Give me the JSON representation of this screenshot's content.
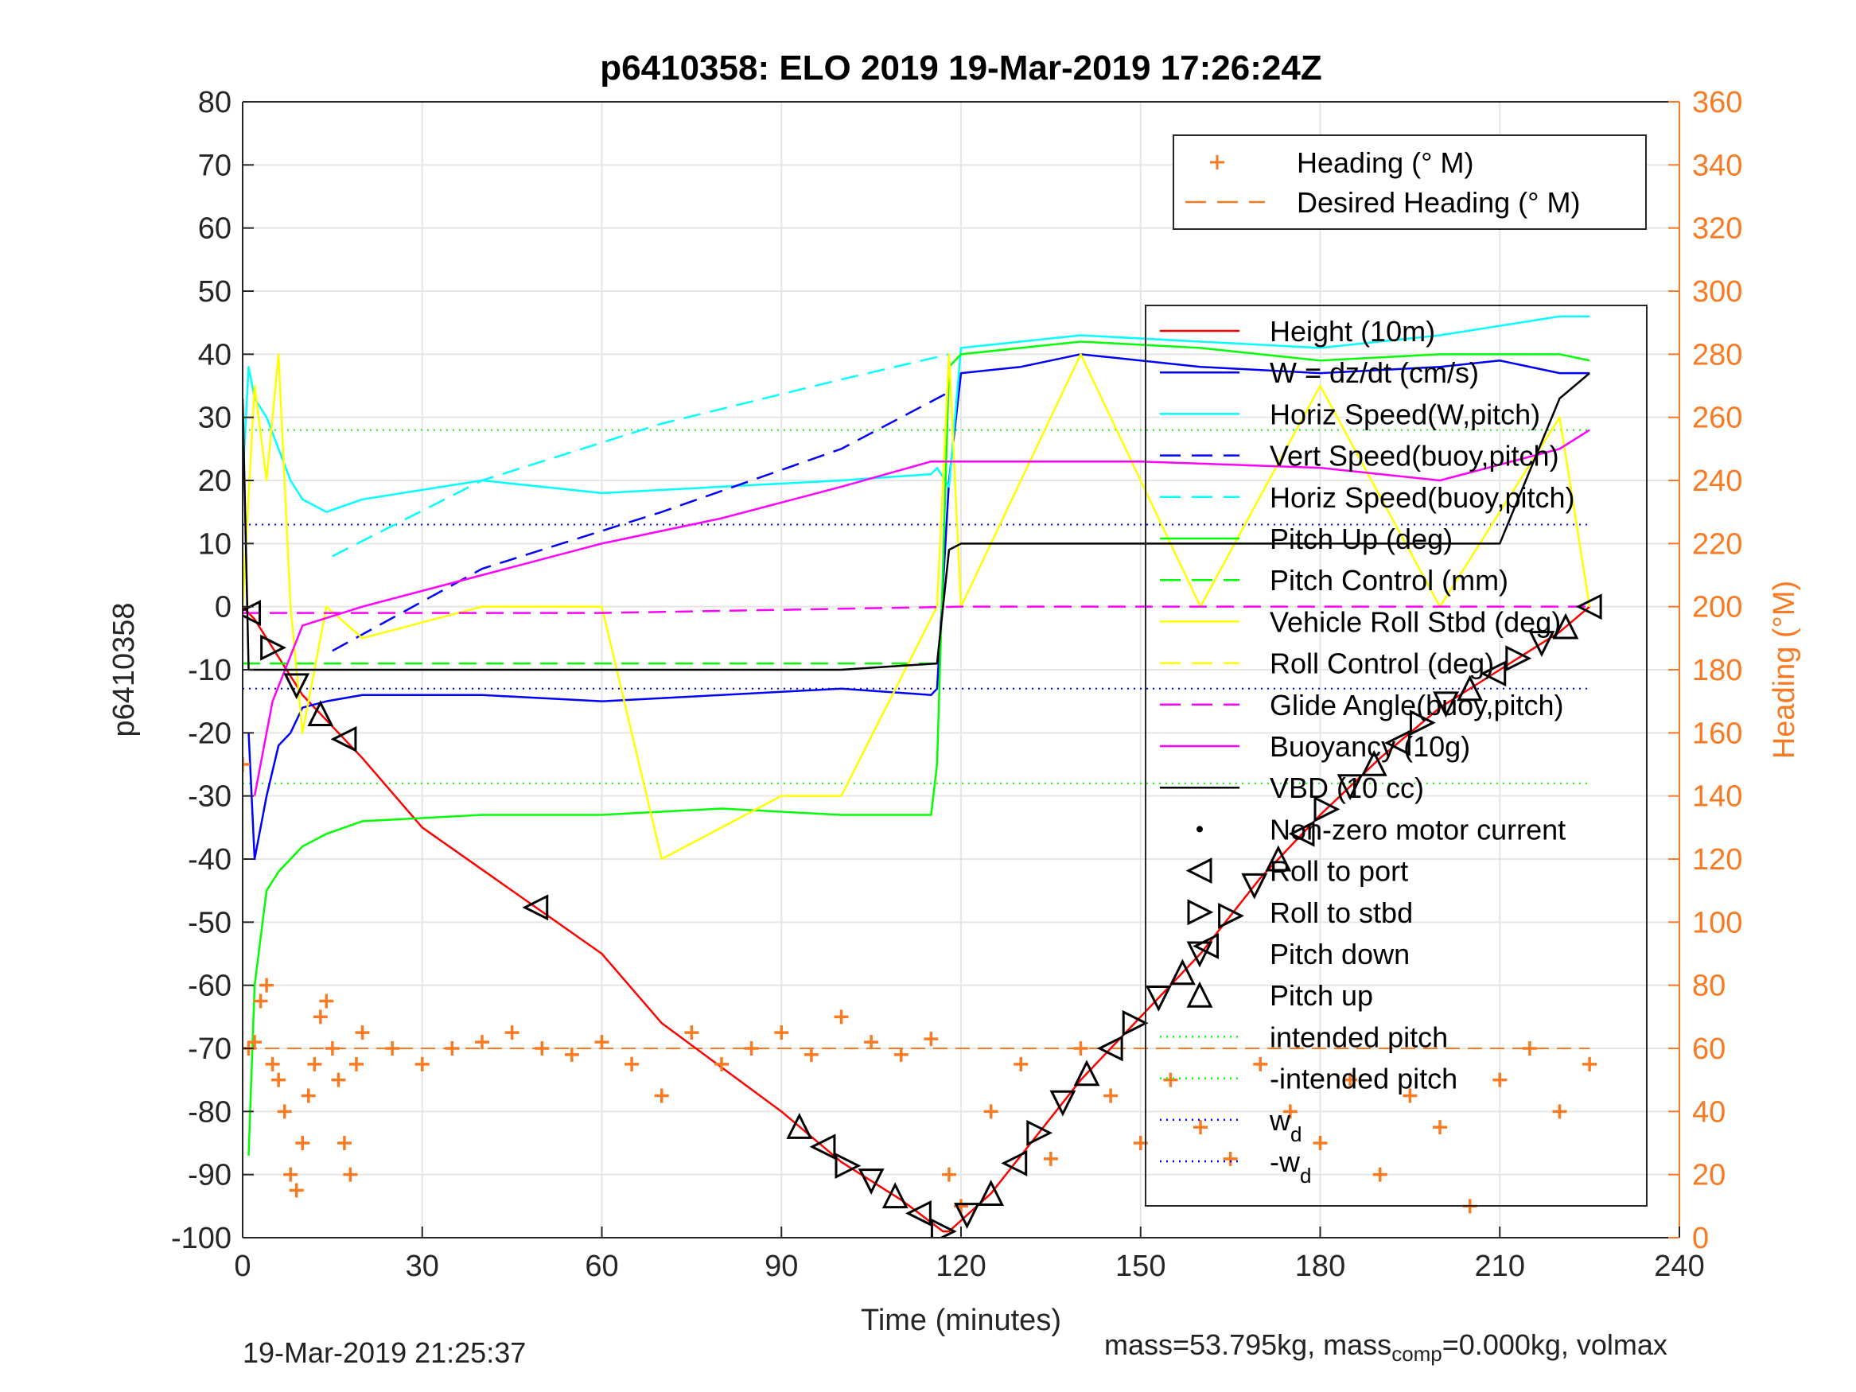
{
  "chart_data": {
    "type": "line",
    "title": "p6410358: ELO 2019 19-Mar-2019 17:26:24Z",
    "xlabel": "Time (minutes)",
    "ylabel": "p6410358",
    "ylabel_right": "Heading (°M)",
    "xlim": [
      0,
      240
    ],
    "ylim": [
      -100,
      80
    ],
    "ylim_right": [
      0,
      360
    ],
    "xticks": [
      0,
      30,
      60,
      90,
      120,
      150,
      180,
      210,
      240
    ],
    "yticks": [
      -100,
      -90,
      -80,
      -70,
      -60,
      -50,
      -40,
      -30,
      -20,
      -10,
      0,
      10,
      20,
      30,
      40,
      50,
      60,
      70,
      80
    ],
    "yticks_right": [
      0,
      20,
      40,
      60,
      80,
      100,
      120,
      140,
      160,
      180,
      200,
      220,
      240,
      260,
      280,
      300,
      320,
      340,
      360
    ],
    "grid": true,
    "colors": {
      "height": "#ff0000",
      "w": "#0000ff",
      "horiz_w": "#00ffff",
      "pitch": "#00ff00",
      "roll": "#ffff00",
      "glide": "#ff00ff",
      "buoyancy": "#ff00ff",
      "vbd": "#000000",
      "heading": "#f97a22",
      "axis": "#262626",
      "right_axis": "#f97a22"
    },
    "legend_right_top": [
      {
        "label": "Heading (° M)",
        "style": "plus",
        "color": "#f97a22"
      },
      {
        "label": "Desired Heading (° M)",
        "style": "dash",
        "color": "#f97a22"
      }
    ],
    "legend_main": [
      {
        "label": "Height (10m)",
        "style": "solid",
        "color": "#ff0000"
      },
      {
        "label": "W = dz/dt (cm/s)",
        "style": "solid",
        "color": "#0000ff"
      },
      {
        "label": "Horiz Speed(W,pitch)",
        "style": "solid",
        "color": "#00ffff"
      },
      {
        "label": "Vert Speed(buoy,pitch)",
        "style": "dash",
        "color": "#0000ff"
      },
      {
        "label": "Horiz Speed(buoy,pitch)",
        "style": "dash",
        "color": "#00ffff"
      },
      {
        "label": "Pitch Up (deg)",
        "style": "solid",
        "color": "#00ff00"
      },
      {
        "label": "Pitch Control (mm)",
        "style": "dash",
        "color": "#00ff00"
      },
      {
        "label": "Vehicle Roll Stbd (deg)",
        "style": "solid",
        "color": "#ffff00"
      },
      {
        "label": "Roll Control (deg)",
        "style": "dash",
        "color": "#ffff00"
      },
      {
        "label": "Glide Angle(buoy,pitch)",
        "style": "dash",
        "color": "#ff00ff"
      },
      {
        "label": "Buoyancy (10g)",
        "style": "solid",
        "color": "#ff00ff"
      },
      {
        "label": "VBD (10 cc)",
        "style": "solid",
        "color": "#000000"
      },
      {
        "label": "Non-zero motor current",
        "style": "dot",
        "color": "#000000"
      },
      {
        "label": "Roll to port",
        "style": "tri-left",
        "color": "#000000"
      },
      {
        "label": "Roll to stbd",
        "style": "tri-right",
        "color": "#000000"
      },
      {
        "label": "Pitch down",
        "style": "tri-down",
        "color": "#000000"
      },
      {
        "label": "Pitch up",
        "style": "tri-up",
        "color": "#000000"
      },
      {
        "label": "intended pitch",
        "style": "dotted",
        "color": "#00ff00"
      },
      {
        "label": "-intended pitch",
        "style": "dotted",
        "color": "#00ff00"
      },
      {
        "label": "w",
        "sub": "d",
        "style": "dotted",
        "color": "#0000ff"
      },
      {
        "label": "-w",
        "sub": "d",
        "style": "dotted",
        "color": "#0000ff"
      }
    ],
    "reference_lines": {
      "intended_pitch": 28,
      "neg_intended_pitch": -28,
      "wd": 13,
      "neg_wd": -13,
      "desired_heading": 60
    },
    "series": [
      {
        "name": "Height (10m)",
        "x": [
          0,
          2,
          10,
          20,
          30,
          48,
          60,
          70,
          90,
          100,
          110,
          117,
          118,
          125,
          140,
          150,
          160,
          170,
          180,
          190,
          200,
          210,
          220,
          225
        ],
        "y": [
          0,
          -2,
          -14,
          -24,
          -35,
          -47,
          -55,
          -66,
          -80,
          -88,
          -94,
          -99,
          -99,
          -93,
          -75,
          -65,
          -55,
          -43,
          -33,
          -24,
          -16,
          -10,
          -4,
          0
        ]
      },
      {
        "name": "W = dz/dt (cm/s)",
        "x": [
          1,
          2,
          4,
          6,
          8,
          10,
          14,
          20,
          40,
          60,
          80,
          100,
          115,
          116,
          118,
          120,
          130,
          140,
          160,
          180,
          200,
          210,
          220,
          225
        ],
        "y": [
          -20,
          -40,
          -30,
          -22,
          -20,
          -16,
          -15,
          -14,
          -14,
          -15,
          -14,
          -13,
          -14,
          -13,
          20,
          37,
          38,
          40,
          38,
          37,
          38,
          39,
          37,
          37
        ]
      },
      {
        "name": "Horiz Speed(W,pitch)",
        "x": [
          0,
          1,
          2,
          4,
          6,
          8,
          10,
          14,
          20,
          40,
          60,
          80,
          100,
          115,
          116,
          118,
          120,
          140,
          160,
          180,
          200,
          220,
          225
        ],
        "y": [
          20,
          38,
          33,
          30,
          25,
          20,
          17,
          15,
          17,
          20,
          18,
          19,
          20,
          21,
          22,
          19,
          41,
          43,
          42,
          41,
          43,
          46,
          46
        ]
      },
      {
        "name": "Vert Speed(buoy,pitch)",
        "x": [
          15,
          40,
          70,
          100,
          118
        ],
        "y": [
          -7,
          6,
          15,
          25,
          34
        ]
      },
      {
        "name": "Horiz Speed(buoy,pitch)",
        "x": [
          15,
          40,
          70,
          100,
          118
        ],
        "y": [
          8,
          20,
          29,
          36,
          40
        ]
      },
      {
        "name": "Pitch Up (deg)",
        "x": [
          1,
          2,
          4,
          6,
          8,
          10,
          14,
          20,
          40,
          60,
          80,
          100,
          115,
          116,
          118,
          120,
          140,
          160,
          180,
          200,
          220,
          225
        ],
        "y": [
          -87,
          -60,
          -45,
          -42,
          -40,
          -38,
          -36,
          -34,
          -33,
          -33,
          -32,
          -33,
          -33,
          -25,
          38,
          40,
          42,
          41,
          39,
          40,
          40,
          39
        ]
      },
      {
        "name": "Pitch Control (mm)",
        "x": [
          0,
          20,
          60,
          100,
          117
        ],
        "y": [
          -9,
          -9,
          -9,
          -9,
          -9
        ]
      },
      {
        "name": "Vehicle Roll Stbd (deg)",
        "x": [
          0,
          2,
          4,
          6,
          8,
          10,
          14,
          20,
          40,
          60,
          70,
          90,
          100,
          116,
          118,
          120,
          140,
          160,
          180,
          200,
          220,
          225
        ],
        "y": [
          0,
          35,
          20,
          40,
          0,
          -20,
          0,
          -5,
          0,
          0,
          -40,
          -30,
          -30,
          0,
          40,
          0,
          40,
          0,
          35,
          0,
          30,
          0
        ]
      },
      {
        "name": "Glide Angle(buoy,pitch)",
        "x": [
          0,
          60,
          120,
          180,
          225
        ],
        "y": [
          -1,
          -1,
          0,
          0,
          0
        ]
      },
      {
        "name": "Buoyancy (10g)",
        "x": [
          2,
          5,
          10,
          20,
          40,
          60,
          80,
          100,
          115,
          120,
          150,
          180,
          200,
          220,
          225
        ],
        "y": [
          -30,
          -15,
          -3,
          0,
          5,
          10,
          14,
          19,
          23,
          23,
          23,
          22,
          20,
          25,
          28
        ]
      },
      {
        "name": "VBD (10 cc)",
        "x": [
          0,
          1,
          2,
          20,
          60,
          100,
          116,
          118,
          120,
          160,
          200,
          210,
          220,
          225
        ],
        "y": [
          33,
          -10,
          -10,
          -10,
          -10,
          -10,
          -9,
          9,
          10,
          10,
          10,
          10,
          33,
          37
        ]
      }
    ],
    "heading_points_x": [
      0,
      1,
      2,
      3,
      4,
      5,
      6,
      7,
      8,
      9,
      10,
      11,
      12,
      13,
      14,
      15,
      16,
      17,
      18,
      19,
      20,
      25,
      30,
      35,
      40,
      45,
      50,
      55,
      60,
      65,
      70,
      75,
      80,
      85,
      90,
      95,
      100,
      105,
      110,
      115,
      118,
      120,
      125,
      130,
      135,
      140,
      145,
      150,
      155,
      160,
      165,
      170,
      175,
      180,
      185,
      190,
      195,
      200,
      205,
      210,
      215,
      220,
      225
    ],
    "heading_points_y": [
      150,
      60,
      62,
      75,
      80,
      55,
      50,
      40,
      20,
      15,
      30,
      45,
      55,
      70,
      75,
      60,
      50,
      30,
      20,
      55,
      65,
      60,
      55,
      60,
      62,
      65,
      60,
      58,
      62,
      55,
      45,
      65,
      55,
      60,
      65,
      58,
      70,
      62,
      58,
      63,
      20,
      10,
      40,
      55,
      25,
      60,
      45,
      30,
      50,
      35,
      25,
      55,
      40,
      30,
      50,
      20,
      45,
      35,
      10,
      50,
      60,
      40,
      55
    ]
  },
  "footer": {
    "timestamp": "19-Mar-2019 21:25:37",
    "mass_text_pre": "mass=53.795kg, mass",
    "mass_sub": "comp",
    "mass_text_post": "=0.000kg, volmax"
  }
}
